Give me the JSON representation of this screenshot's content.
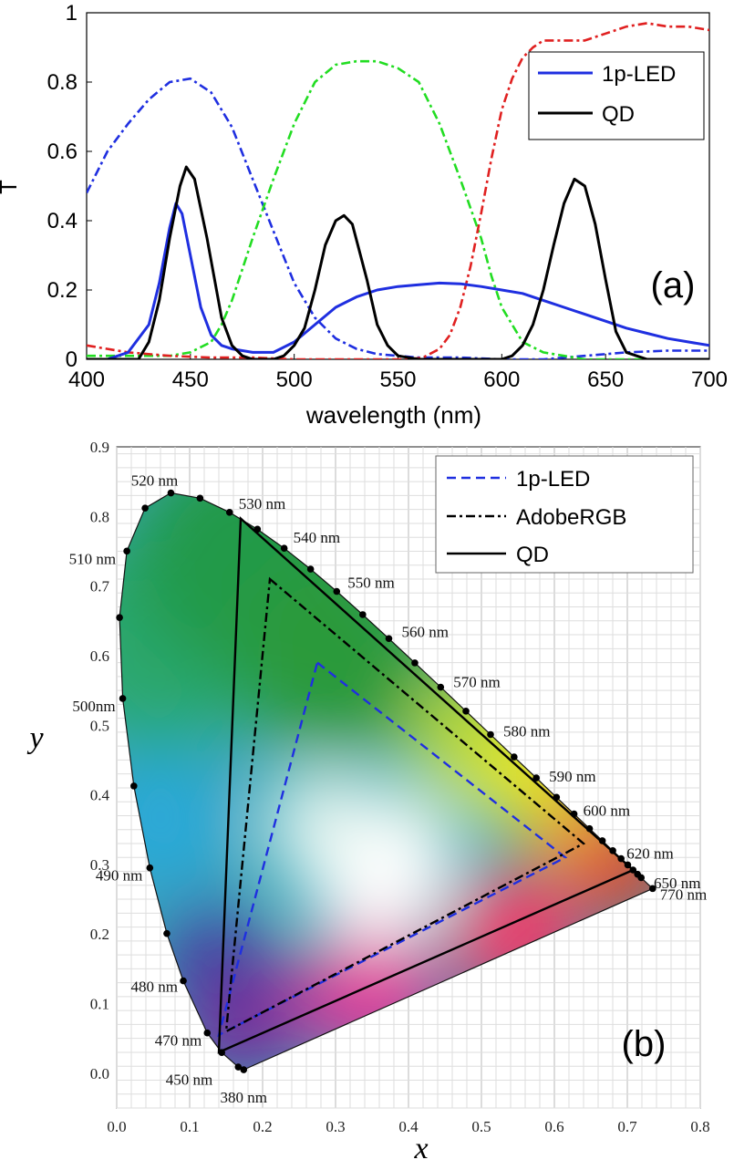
{
  "chart_data": [
    {
      "type": "line",
      "panel_label": "(a)",
      "xlabel": "wavelength (nm)",
      "ylabel": "T",
      "xlim": [
        400,
        700
      ],
      "ylim": [
        0,
        1
      ],
      "xticks": [
        400,
        450,
        500,
        550,
        600,
        650,
        700
      ],
      "yticks": [
        0,
        0.2,
        0.4,
        0.6,
        0.8,
        1
      ],
      "ytick_labels": [
        "0",
        "0.2",
        "0.4",
        "0.6",
        "0.8",
        "1"
      ],
      "legend_position": "top-right",
      "legend": [
        {
          "label": "1p-LED",
          "color": "#1f2fe0",
          "dash": "solid"
        },
        {
          "label": "QD",
          "color": "#000000",
          "dash": "solid"
        }
      ],
      "series": [
        {
          "name": "1p-LED",
          "color": "#1f2fe0",
          "x": [
            400,
            410,
            420,
            430,
            435,
            440,
            443,
            446,
            450,
            455,
            460,
            465,
            470,
            480,
            490,
            500,
            510,
            520,
            530,
            540,
            550,
            560,
            570,
            580,
            590,
            600,
            610,
            620,
            630,
            640,
            650,
            660,
            670,
            680,
            690,
            700
          ],
          "y": [
            0.0,
            0.0,
            0.02,
            0.1,
            0.22,
            0.38,
            0.45,
            0.42,
            0.3,
            0.15,
            0.07,
            0.04,
            0.03,
            0.02,
            0.02,
            0.05,
            0.1,
            0.15,
            0.18,
            0.2,
            0.21,
            0.215,
            0.22,
            0.218,
            0.21,
            0.2,
            0.19,
            0.17,
            0.15,
            0.13,
            0.11,
            0.09,
            0.075,
            0.06,
            0.05,
            0.04
          ]
        },
        {
          "name": "QD",
          "color": "#000000",
          "x": [
            400,
            425,
            430,
            435,
            440,
            445,
            448,
            452,
            458,
            465,
            470,
            475,
            480,
            490,
            495,
            500,
            505,
            510,
            515,
            520,
            524,
            528,
            535,
            540,
            545,
            550,
            560,
            570,
            580,
            590,
            600,
            605,
            610,
            615,
            620,
            625,
            630,
            635,
            640,
            645,
            650,
            655,
            660,
            670,
            700
          ],
          "y": [
            0.0,
            0.0,
            0.05,
            0.17,
            0.35,
            0.5,
            0.555,
            0.52,
            0.35,
            0.12,
            0.04,
            0.01,
            0.0,
            0.0,
            0.01,
            0.04,
            0.09,
            0.2,
            0.33,
            0.4,
            0.415,
            0.39,
            0.23,
            0.1,
            0.04,
            0.01,
            0.0,
            0.0,
            0.0,
            0.0,
            0.0,
            0.01,
            0.04,
            0.1,
            0.2,
            0.33,
            0.45,
            0.52,
            0.5,
            0.39,
            0.23,
            0.08,
            0.02,
            0.0,
            0.0
          ]
        },
        {
          "color": "#1f2fe0",
          "dash": "dashdot",
          "x": [
            400,
            410,
            420,
            430,
            440,
            450,
            460,
            470,
            480,
            490,
            500,
            510,
            520,
            530,
            540,
            550,
            560,
            570,
            580,
            600,
            620,
            640,
            660,
            680,
            700
          ],
          "y": [
            0.48,
            0.6,
            0.68,
            0.75,
            0.8,
            0.81,
            0.77,
            0.67,
            0.52,
            0.37,
            0.22,
            0.12,
            0.06,
            0.03,
            0.015,
            0.01,
            0.005,
            0.005,
            0.005,
            0.0,
            0.0,
            0.01,
            0.02,
            0.025,
            0.025
          ]
        },
        {
          "color": "#22dd22",
          "dash": "dashdot",
          "x": [
            400,
            440,
            450,
            460,
            465,
            470,
            475,
            480,
            490,
            500,
            510,
            520,
            530,
            540,
            550,
            560,
            570,
            580,
            590,
            595,
            600,
            610,
            620,
            630,
            640,
            700
          ],
          "y": [
            0.01,
            0.01,
            0.02,
            0.05,
            0.1,
            0.17,
            0.26,
            0.35,
            0.52,
            0.68,
            0.8,
            0.85,
            0.86,
            0.86,
            0.84,
            0.8,
            0.68,
            0.52,
            0.35,
            0.24,
            0.15,
            0.05,
            0.02,
            0.01,
            0.0,
            0.0
          ]
        },
        {
          "color": "#e02020",
          "dash": "dashdot",
          "x": [
            400,
            420,
            440,
            460,
            480,
            500,
            540,
            555,
            562,
            570,
            575,
            580,
            585,
            590,
            595,
            600,
            605,
            610,
            615,
            620,
            630,
            640,
            650,
            660,
            670,
            680,
            690,
            700
          ],
          "y": [
            0.04,
            0.02,
            0.01,
            0.005,
            0.005,
            0.0,
            0.0,
            0.0,
            0.005,
            0.03,
            0.07,
            0.15,
            0.27,
            0.42,
            0.58,
            0.72,
            0.81,
            0.87,
            0.9,
            0.92,
            0.92,
            0.92,
            0.94,
            0.96,
            0.97,
            0.96,
            0.96,
            0.95
          ]
        }
      ]
    },
    {
      "type": "scatter",
      "panel_label": "(b)",
      "xlabel": "x",
      "ylabel": "y",
      "xlim": [
        0.0,
        0.8
      ],
      "ylim": [
        -0.05,
        0.9
      ],
      "xticks": [
        0.0,
        0.1,
        0.2,
        0.3,
        0.4,
        0.5,
        0.6,
        0.7,
        0.8
      ],
      "yticks": [
        0.0,
        0.1,
        0.2,
        0.3,
        0.4,
        0.5,
        0.6,
        0.7,
        0.8,
        0.9
      ],
      "tick_labels_x": [
        "0.0",
        "0.1",
        "0.2",
        "0.3",
        "0.4",
        "0.5",
        "0.6",
        "0.7",
        "0.8"
      ],
      "tick_labels_y": [
        "0.0",
        "0.1",
        "0.2",
        "0.3",
        "0.4",
        "0.5",
        "0.6",
        "0.7",
        "0.8",
        "0.9"
      ],
      "grid": true,
      "legend_position": "top-right",
      "legend": [
        {
          "label": "1p-LED",
          "color": "#1f2fe0",
          "dash": "dashed"
        },
        {
          "label": "AdobeRGB",
          "color": "#000000",
          "dash": "dashdot"
        },
        {
          "label": "QD",
          "color": "#000000",
          "dash": "solid"
        }
      ],
      "locus": [
        [
          0.1741,
          0.005
        ],
        [
          0.1666,
          0.0089
        ],
        [
          0.144,
          0.0297
        ],
        [
          0.1241,
          0.0578
        ],
        [
          0.0913,
          0.1327
        ],
        [
          0.0687,
          0.2007
        ],
        [
          0.0454,
          0.295
        ],
        [
          0.0235,
          0.4127
        ],
        [
          0.0082,
          0.5384
        ],
        [
          0.0039,
          0.6548
        ],
        [
          0.0139,
          0.7502
        ],
        [
          0.0389,
          0.812
        ],
        [
          0.0743,
          0.8338
        ],
        [
          0.1142,
          0.8262
        ],
        [
          0.1547,
          0.8059
        ],
        [
          0.1929,
          0.7816
        ],
        [
          0.2296,
          0.7543
        ],
        [
          0.2658,
          0.7243
        ],
        [
          0.3016,
          0.6923
        ],
        [
          0.3373,
          0.6589
        ],
        [
          0.3731,
          0.6245
        ],
        [
          0.4087,
          0.5896
        ],
        [
          0.4441,
          0.5547
        ],
        [
          0.4788,
          0.5202
        ],
        [
          0.5125,
          0.4866
        ],
        [
          0.5448,
          0.4544
        ],
        [
          0.5752,
          0.4242
        ],
        [
          0.6029,
          0.3965
        ],
        [
          0.627,
          0.3725
        ],
        [
          0.6482,
          0.3514
        ],
        [
          0.6658,
          0.334
        ],
        [
          0.6801,
          0.3197
        ],
        [
          0.6915,
          0.3083
        ],
        [
          0.7006,
          0.2993
        ],
        [
          0.7079,
          0.292
        ],
        [
          0.714,
          0.2859
        ],
        [
          0.719,
          0.2809
        ],
        [
          0.7347,
          0.2653
        ]
      ],
      "wavelength_labels": [
        {
          "text": "520 nm",
          "x": 0.0743,
          "y": 0.8338
        },
        {
          "text": "530 nm",
          "x": 0.1547,
          "y": 0.8059
        },
        {
          "text": "540 nm",
          "x": 0.2296,
          "y": 0.7543
        },
        {
          "text": "550 nm",
          "x": 0.3016,
          "y": 0.6923
        },
        {
          "text": "560 nm",
          "x": 0.3731,
          "y": 0.6245
        },
        {
          "text": "570 nm",
          "x": 0.4441,
          "y": 0.5547
        },
        {
          "text": "580 nm",
          "x": 0.5125,
          "y": 0.4866
        },
        {
          "text": "590 nm",
          "x": 0.5752,
          "y": 0.4242
        },
        {
          "text": "600 nm",
          "x": 0.627,
          "y": 0.3725
        },
        {
          "text": "620 nm",
          "x": 0.6915,
          "y": 0.3083
        },
        {
          "text": "650 nm",
          "x": 0.7263,
          "y": 0.2735
        },
        {
          "text": "770 nm",
          "x": 0.7347,
          "y": 0.2653
        },
        {
          "text": "510 nm",
          "x": 0.0139,
          "y": 0.7502
        },
        {
          "text": "500nm",
          "x": 0.0082,
          "y": 0.5384
        },
        {
          "text": "490 nm",
          "x": 0.0454,
          "y": 0.295
        },
        {
          "text": "480 nm",
          "x": 0.0913,
          "y": 0.1327
        },
        {
          "text": "470 nm",
          "x": 0.1241,
          "y": 0.0578
        },
        {
          "text": "450 nm",
          "x": 0.1566,
          "y": 0.0177
        },
        {
          "text": "380 nm",
          "x": 0.1741,
          "y": 0.005
        }
      ],
      "series": [
        {
          "name": "1p-LED",
          "color": "#1f2fe0",
          "dash": "dashed",
          "points": [
            [
              0.275,
              0.59
            ],
            [
              0.615,
              0.31
            ],
            [
              0.14,
              0.055
            ]
          ]
        },
        {
          "name": "AdobeRGB",
          "color": "#000000",
          "dash": "dashdot",
          "points": [
            [
              0.21,
              0.71
            ],
            [
              0.64,
              0.33
            ],
            [
              0.15,
              0.06
            ]
          ]
        },
        {
          "name": "QD",
          "color": "#000000",
          "dash": "solid",
          "points": [
            [
              0.17,
              0.797
            ],
            [
              0.708,
              0.292
            ],
            [
              0.14,
              0.03
            ]
          ]
        }
      ]
    }
  ]
}
